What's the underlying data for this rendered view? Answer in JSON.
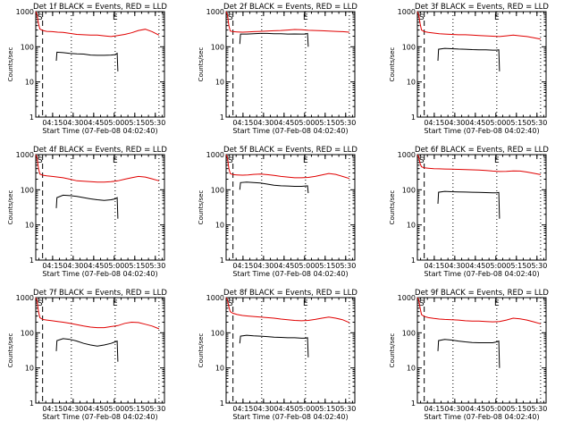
{
  "chart_data": [
    {
      "type": "line",
      "title": "Det 1f BLACK = Events, RED = LLD",
      "xlabel": "Start Time (07-Feb-08 04:02:40)",
      "ylabel": "Counts/sec",
      "xticks": [
        "04:15",
        "04:30",
        "04:45",
        "05:00",
        "05:15",
        "05:30"
      ],
      "yticks": [
        "1",
        "10",
        "100",
        "1000"
      ],
      "yscale": "log",
      "ylim": [
        1,
        1000
      ],
      "xlim_minutes": [
        0,
        94
      ],
      "markers": [
        "S",
        "E"
      ],
      "series": [
        {
          "name": "LLD",
          "color": "#e00000",
          "x": [
            0,
            1,
            2,
            3,
            5,
            8,
            12,
            16,
            20,
            25,
            30,
            35,
            40,
            45,
            50,
            55,
            60,
            65,
            70,
            75,
            80,
            85,
            90
          ],
          "y": [
            1000,
            800,
            450,
            320,
            290,
            275,
            270,
            260,
            255,
            240,
            225,
            220,
            215,
            215,
            205,
            195,
            210,
            225,
            250,
            290,
            315,
            270,
            215
          ]
        },
        {
          "name": "Events",
          "color": "#000000",
          "x": [
            15,
            15.5,
            20,
            25,
            30,
            35,
            40,
            45,
            50,
            55,
            58,
            59.5,
            60
          ],
          "y": [
            40,
            70,
            68,
            65,
            63,
            62,
            58,
            57,
            57,
            58,
            60,
            65,
            20
          ]
        }
      ]
    },
    {
      "type": "line",
      "title": "Det 2f BLACK = Events, RED = LLD",
      "xlabel": "Start Time (07-Feb-08 04:02:40)",
      "ylabel": "Counts/sec",
      "xticks": [
        "04:15",
        "04:30",
        "04:45",
        "05:00",
        "05:15",
        "05:30"
      ],
      "yticks": [
        "1",
        "10",
        "100",
        "1000"
      ],
      "yscale": "log",
      "ylim": [
        1,
        1000
      ],
      "xlim_minutes": [
        0,
        94
      ],
      "markers": [
        "S",
        "E"
      ],
      "series": [
        {
          "name": "LLD",
          "color": "#e00000",
          "x": [
            0,
            1,
            2,
            3,
            5,
            8,
            12,
            16,
            20,
            25,
            30,
            35,
            40,
            45,
            50,
            55,
            60,
            65,
            70,
            75,
            80,
            85,
            90
          ],
          "y": [
            1000,
            800,
            400,
            280,
            270,
            265,
            260,
            265,
            270,
            275,
            280,
            285,
            290,
            300,
            310,
            305,
            295,
            290,
            285,
            280,
            275,
            270,
            260
          ]
        },
        {
          "name": "Events",
          "color": "#000000",
          "x": [
            10,
            10.5,
            15,
            20,
            25,
            30,
            35,
            40,
            45,
            50,
            55,
            58,
            59.5,
            60
          ],
          "y": [
            120,
            230,
            230,
            235,
            240,
            240,
            235,
            235,
            230,
            232,
            230,
            230,
            240,
            100
          ]
        }
      ]
    },
    {
      "type": "line",
      "title": "Det 3f BLACK = Events, RED = LLD",
      "xlabel": "Start Time (07-Feb-08 04:02:40)",
      "ylabel": "Counts/sec",
      "xticks": [
        "04:15",
        "04:30",
        "04:45",
        "05:00",
        "05:15",
        "05:30"
      ],
      "yticks": [
        "1",
        "10",
        "100",
        "1000"
      ],
      "yscale": "log",
      "ylim": [
        1,
        1000
      ],
      "xlim_minutes": [
        0,
        94
      ],
      "markers": [
        "S",
        "E"
      ],
      "series": [
        {
          "name": "LLD",
          "color": "#e00000",
          "x": [
            0,
            1,
            2,
            3,
            5,
            8,
            12,
            16,
            20,
            25,
            30,
            35,
            40,
            45,
            50,
            55,
            60,
            65,
            70,
            75,
            80,
            85,
            90
          ],
          "y": [
            1000,
            800,
            450,
            300,
            270,
            255,
            245,
            235,
            230,
            225,
            220,
            220,
            215,
            210,
            205,
            200,
            195,
            205,
            215,
            205,
            195,
            180,
            165
          ]
        },
        {
          "name": "Events",
          "color": "#000000",
          "x": [
            15,
            15.5,
            20,
            25,
            30,
            35,
            40,
            45,
            50,
            55,
            58,
            59.5,
            60
          ],
          "y": [
            40,
            85,
            90,
            88,
            86,
            85,
            83,
            82,
            82,
            80,
            80,
            82,
            20
          ]
        }
      ]
    },
    {
      "type": "line",
      "title": "Det 4f BLACK = Events, RED = LLD",
      "xlabel": "Start Time (07-Feb-08 04:02:40)",
      "ylabel": "Counts/sec",
      "xticks": [
        "04:15",
        "04:30",
        "04:45",
        "05:00",
        "05:15",
        "05:30"
      ],
      "yticks": [
        "1",
        "10",
        "100",
        "1000"
      ],
      "yscale": "log",
      "ylim": [
        1,
        1000
      ],
      "xlim_minutes": [
        0,
        94
      ],
      "markers": [
        "S",
        "E"
      ],
      "series": [
        {
          "name": "LLD",
          "color": "#e00000",
          "x": [
            0,
            1,
            2,
            3,
            5,
            8,
            12,
            16,
            20,
            25,
            30,
            35,
            40,
            45,
            50,
            55,
            60,
            65,
            70,
            75,
            80,
            85,
            90
          ],
          "y": [
            1000,
            800,
            400,
            280,
            260,
            250,
            240,
            230,
            220,
            200,
            180,
            175,
            170,
            165,
            165,
            170,
            180,
            200,
            220,
            240,
            230,
            205,
            180
          ]
        },
        {
          "name": "Events",
          "color": "#000000",
          "x": [
            15,
            15.5,
            20,
            25,
            30,
            35,
            40,
            45,
            50,
            55,
            58,
            59.5,
            60
          ],
          "y": [
            30,
            60,
            70,
            68,
            65,
            60,
            55,
            52,
            50,
            52,
            55,
            60,
            15
          ]
        }
      ]
    },
    {
      "type": "line",
      "title": "Det 5f BLACK = Events, RED = LLD",
      "xlabel": "Start Time (07-Feb-08 04:02:40)",
      "ylabel": "Counts/sec",
      "xticks": [
        "04:15",
        "04:30",
        "04:45",
        "05:00",
        "05:15",
        "05:30"
      ],
      "yticks": [
        "1",
        "10",
        "100",
        "1000"
      ],
      "yscale": "log",
      "ylim": [
        1,
        1000
      ],
      "xlim_minutes": [
        0,
        94
      ],
      "markers": [
        "S",
        "E"
      ],
      "series": [
        {
          "name": "LLD",
          "color": "#e00000",
          "x": [
            0,
            1,
            2,
            3,
            5,
            8,
            12,
            16,
            20,
            25,
            30,
            35,
            40,
            45,
            50,
            55,
            60,
            65,
            70,
            75,
            80,
            85,
            90
          ],
          "y": [
            1000,
            800,
            400,
            290,
            270,
            265,
            260,
            265,
            275,
            280,
            270,
            255,
            240,
            230,
            220,
            220,
            225,
            240,
            265,
            290,
            275,
            240,
            210
          ]
        },
        {
          "name": "Events",
          "color": "#000000",
          "x": [
            10,
            10.5,
            15,
            20,
            25,
            30,
            35,
            40,
            45,
            50,
            55,
            58,
            59.5,
            60
          ],
          "y": [
            100,
            160,
            165,
            160,
            155,
            145,
            135,
            130,
            128,
            125,
            125,
            128,
            130,
            80
          ]
        }
      ]
    },
    {
      "type": "line",
      "title": "Det 6f BLACK = Events, RED = LLD",
      "xlabel": "Start Time (07-Feb-08 04:02:40)",
      "ylabel": "Counts/sec",
      "xticks": [
        "04:15",
        "04:30",
        "04:45",
        "05:00",
        "05:15",
        "05:30"
      ],
      "yticks": [
        "1",
        "10",
        "100",
        "1000"
      ],
      "yscale": "log",
      "ylim": [
        1,
        1000
      ],
      "xlim_minutes": [
        0,
        94
      ],
      "markers": [
        "S",
        "E"
      ],
      "series": [
        {
          "name": "LLD",
          "color": "#e00000",
          "x": [
            0,
            1,
            2,
            3,
            5,
            8,
            12,
            16,
            20,
            25,
            30,
            35,
            40,
            45,
            50,
            55,
            60,
            65,
            70,
            75,
            80,
            85,
            90
          ],
          "y": [
            1000,
            850,
            550,
            450,
            420,
            410,
            400,
            395,
            390,
            385,
            380,
            375,
            370,
            365,
            355,
            340,
            330,
            335,
            345,
            340,
            320,
            295,
            270
          ]
        },
        {
          "name": "Events",
          "color": "#000000",
          "x": [
            15,
            15.5,
            20,
            25,
            30,
            35,
            40,
            45,
            50,
            55,
            58,
            59.5,
            60
          ],
          "y": [
            40,
            85,
            90,
            88,
            87,
            86,
            85,
            84,
            83,
            82,
            82,
            84,
            15
          ]
        }
      ]
    },
    {
      "type": "line",
      "title": "Det 7f BLACK = Events, RED = LLD",
      "xlabel": "Start Time (07-Feb-08 04:02:40)",
      "ylabel": "Counts/sec",
      "xticks": [
        "04:15",
        "04:30",
        "04:45",
        "05:00",
        "05:15",
        "05:30"
      ],
      "yticks": [
        "1",
        "10",
        "100",
        "1000"
      ],
      "yscale": "log",
      "ylim": [
        1,
        1000
      ],
      "xlim_minutes": [
        0,
        94
      ],
      "markers": [
        "S",
        "E"
      ],
      "series": [
        {
          "name": "LLD",
          "color": "#e00000",
          "x": [
            0,
            1,
            2,
            3,
            5,
            8,
            12,
            16,
            20,
            25,
            30,
            35,
            40,
            45,
            50,
            55,
            60,
            65,
            70,
            75,
            80,
            85,
            90
          ],
          "y": [
            1000,
            800,
            400,
            270,
            240,
            230,
            220,
            210,
            200,
            185,
            170,
            155,
            145,
            140,
            140,
            150,
            160,
            185,
            200,
            195,
            175,
            155,
            130
          ]
        },
        {
          "name": "Events",
          "color": "#000000",
          "x": [
            15,
            15.5,
            20,
            25,
            30,
            35,
            40,
            45,
            50,
            55,
            58,
            59.5,
            60
          ],
          "y": [
            30,
            60,
            68,
            65,
            58,
            50,
            45,
            42,
            45,
            50,
            55,
            58,
            15
          ]
        }
      ]
    },
    {
      "type": "line",
      "title": "Det 8f BLACK = Events, RED = LLD",
      "xlabel": "Start Time (07-Feb-08 04:02:40)",
      "ylabel": "Counts/sec",
      "xticks": [
        "04:15",
        "04:30",
        "04:45",
        "05:00",
        "05:15",
        "05:30"
      ],
      "yticks": [
        "1",
        "10",
        "100",
        "1000"
      ],
      "yscale": "log",
      "ylim": [
        1,
        1000
      ],
      "xlim_minutes": [
        0,
        94
      ],
      "markers": [
        "S",
        "E"
      ],
      "series": [
        {
          "name": "LLD",
          "color": "#e00000",
          "x": [
            0,
            1,
            2,
            3,
            5,
            8,
            12,
            16,
            20,
            25,
            30,
            35,
            40,
            45,
            50,
            55,
            60,
            65,
            70,
            75,
            80,
            85,
            90
          ],
          "y": [
            1000,
            850,
            550,
            400,
            360,
            330,
            310,
            300,
            290,
            280,
            270,
            260,
            245,
            235,
            225,
            220,
            225,
            240,
            260,
            280,
            260,
            235,
            195
          ]
        },
        {
          "name": "Events",
          "color": "#000000",
          "x": [
            10,
            10.5,
            15,
            20,
            25,
            30,
            35,
            40,
            45,
            50,
            55,
            58,
            59.5,
            60
          ],
          "y": [
            50,
            80,
            85,
            82,
            80,
            78,
            75,
            74,
            72,
            72,
            70,
            70,
            72,
            20
          ]
        }
      ]
    },
    {
      "type": "line",
      "title": "Det 9f BLACK = Events, RED = LLD",
      "xlabel": "Start Time (07-Feb-08 04:02:40)",
      "ylabel": "Counts/sec",
      "xticks": [
        "04:15",
        "04:30",
        "04:45",
        "05:00",
        "05:15",
        "05:30"
      ],
      "yticks": [
        "1",
        "10",
        "100",
        "1000"
      ],
      "yscale": "log",
      "ylim": [
        1,
        1000
      ],
      "xlim_minutes": [
        0,
        94
      ],
      "markers": [
        "S",
        "E"
      ],
      "series": [
        {
          "name": "LLD",
          "color": "#e00000",
          "x": [
            0,
            1,
            2,
            3,
            5,
            8,
            12,
            16,
            20,
            25,
            30,
            35,
            40,
            45,
            50,
            55,
            60,
            65,
            70,
            75,
            80,
            85,
            90
          ],
          "y": [
            1000,
            850,
            500,
            330,
            290,
            270,
            255,
            245,
            240,
            235,
            230,
            220,
            215,
            215,
            210,
            205,
            210,
            230,
            260,
            250,
            230,
            205,
            180
          ]
        },
        {
          "name": "Events",
          "color": "#000000",
          "x": [
            15,
            15.5,
            20,
            25,
            30,
            35,
            40,
            45,
            50,
            55,
            58,
            59.5,
            60
          ],
          "y": [
            30,
            60,
            65,
            62,
            58,
            55,
            53,
            52,
            52,
            52,
            55,
            58,
            10
          ]
        }
      ]
    }
  ]
}
